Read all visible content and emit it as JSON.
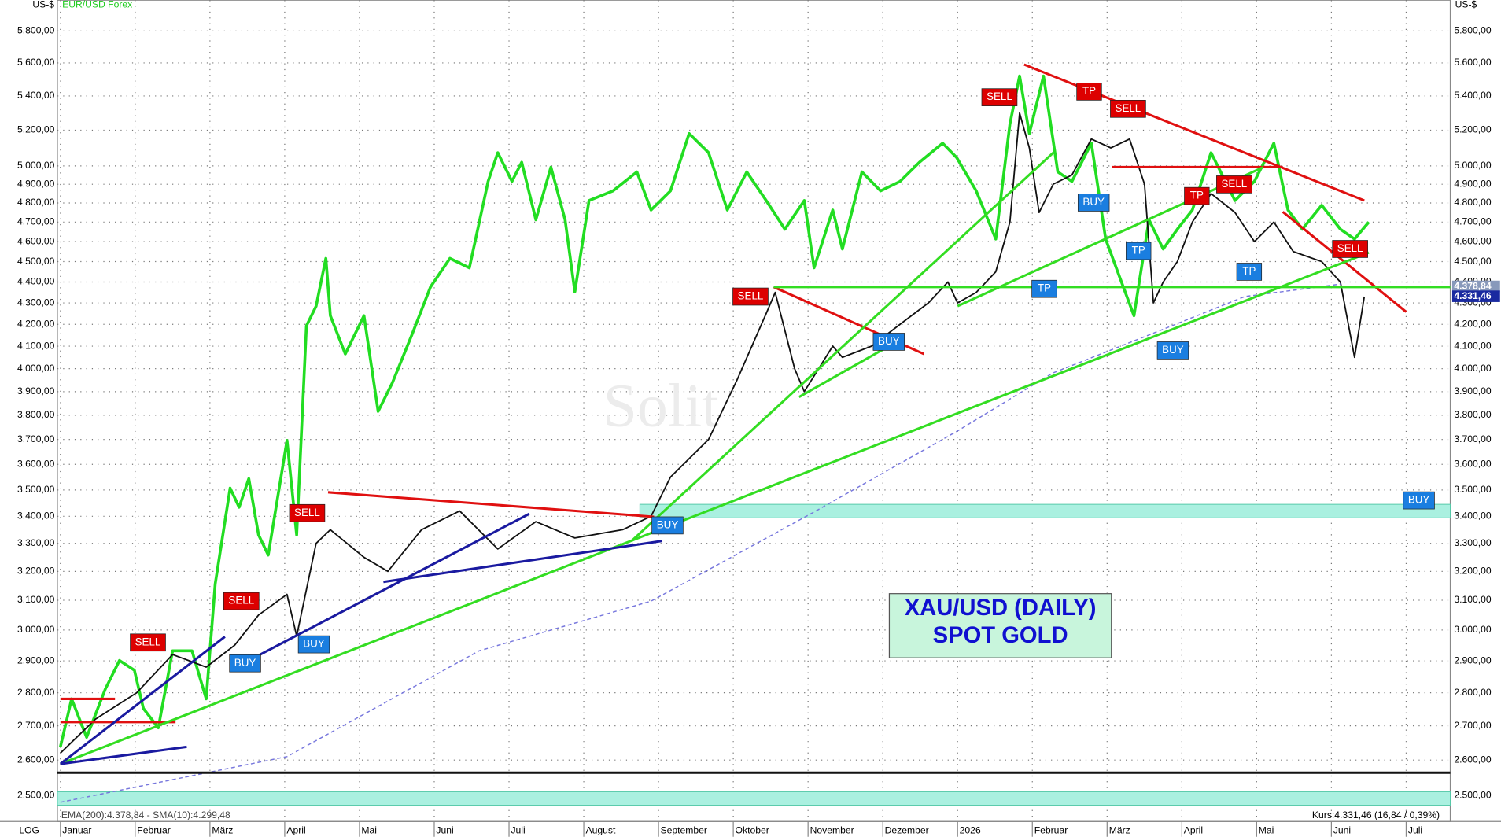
{
  "chart_data": {
    "type": "line",
    "y_unit": "US-$",
    "subtitle": "EUR/USD Forex",
    "scale_label": "LOG",
    "title_lines": [
      "XAU/USD (DAILY)",
      "SPOT GOLD"
    ],
    "watermark": "Solit",
    "indicator_legend": "EMA(200):4.378,84 - SMA(10):4.299,48",
    "price_info": "Kurs:4.331,46 (16,84 / 0,39%)",
    "log_scale": true,
    "grid": true,
    "xlim": [
      -0.04,
      18.59
    ],
    "xticks": [
      {
        "value": 0,
        "label": "Januar"
      },
      {
        "value": 1,
        "label": "Februar"
      },
      {
        "value": 2,
        "label": "März"
      },
      {
        "value": 3,
        "label": "April"
      },
      {
        "value": 4,
        "label": "Mai"
      },
      {
        "value": 5,
        "label": "Juni"
      },
      {
        "value": 6,
        "label": "Juli"
      },
      {
        "value": 7,
        "label": "August"
      },
      {
        "value": 8,
        "label": "September"
      },
      {
        "value": 9,
        "label": "Oktober"
      },
      {
        "value": 10,
        "label": "November"
      },
      {
        "value": 11,
        "label": "Dezember"
      },
      {
        "value": 12,
        "label": "2026"
      },
      {
        "value": 13,
        "label": "Februar"
      },
      {
        "value": 14,
        "label": "März"
      },
      {
        "value": 15,
        "label": "April"
      },
      {
        "value": 16,
        "label": "Mai"
      },
      {
        "value": 17,
        "label": "Juni"
      },
      {
        "value": 18,
        "label": "Juli"
      }
    ],
    "ylim": [
      2430,
      6000
    ],
    "yticks": [
      {
        "value": 2500,
        "label": "2.500,00"
      },
      {
        "value": 2600,
        "label": "2.600,00"
      },
      {
        "value": 2700,
        "label": "2.700,00"
      },
      {
        "value": 2800,
        "label": "2.800,00"
      },
      {
        "value": 2900,
        "label": "2.900,00"
      },
      {
        "value": 3000,
        "label": "3.000,00"
      },
      {
        "value": 3100,
        "label": "3.100,00"
      },
      {
        "value": 3200,
        "label": "3.200,00"
      },
      {
        "value": 3300,
        "label": "3.300,00"
      },
      {
        "value": 3400,
        "label": "3.400,00"
      },
      {
        "value": 3500,
        "label": "3.500,00"
      },
      {
        "value": 3600,
        "label": "3.600,00"
      },
      {
        "value": 3700,
        "label": "3.700,00"
      },
      {
        "value": 3800,
        "label": "3.800,00"
      },
      {
        "value": 3900,
        "label": "3.900,00"
      },
      {
        "value": 4000,
        "label": "4.000,00"
      },
      {
        "value": 4100,
        "label": "4.100,00"
      },
      {
        "value": 4200,
        "label": "4.200,00"
      },
      {
        "value": 4300,
        "label": "4.300,00"
      },
      {
        "value": 4400,
        "label": "4.400,00"
      },
      {
        "value": 4500,
        "label": "4.500,00"
      },
      {
        "value": 4600,
        "label": "4.600,00"
      },
      {
        "value": 4700,
        "label": "4.700,00"
      },
      {
        "value": 4800,
        "label": "4.800,00"
      },
      {
        "value": 4900,
        "label": "4.900,00"
      },
      {
        "value": 5000,
        "label": "5.000,00"
      },
      {
        "value": 5200,
        "label": "5.200,00"
      },
      {
        "value": 5400,
        "label": "5.400,00"
      },
      {
        "value": 5600,
        "label": "5.600,00"
      },
      {
        "value": 5800,
        "label": "5.800,00"
      }
    ],
    "series": [
      {
        "name": "EUR/USD Forex",
        "color": "#22dd22",
        "width": 3,
        "dash": false,
        "x": [
          0,
          0.15,
          0.35,
          0.6,
          0.79,
          0.99,
          1.11,
          1.31,
          1.5,
          1.76,
          1.95,
          2.07,
          2.27,
          2.39,
          2.52,
          2.65,
          2.78,
          3.03,
          3.16,
          3.29,
          3.42,
          3.55,
          3.61,
          3.81,
          4.06,
          4.25,
          4.44,
          4.7,
          4.95,
          5.21,
          5.47,
          5.72,
          5.85,
          6.04,
          6.17,
          6.36,
          6.56,
          6.75,
          6.88,
          7.07,
          7.39,
          7.71,
          7.9,
          8.16,
          8.41,
          8.67,
          8.92,
          9.18,
          9.44,
          9.69,
          9.95,
          10.08,
          10.33,
          10.46,
          10.72,
          10.97,
          11.23,
          11.49,
          11.8,
          11.99,
          12.25,
          12.51,
          12.7,
          12.83,
          12.96,
          13.15,
          13.34,
          13.53,
          13.79,
          13.98,
          14.17,
          14.36,
          14.56,
          14.75,
          14.94,
          15.14,
          15.39,
          15.71,
          15.97,
          16.23,
          16.42,
          16.61,
          16.87,
          17.12,
          17.31,
          17.5
        ],
        "values": [
          2638,
          2781,
          2666,
          2811,
          2901,
          2870,
          2752,
          2694,
          2932,
          2932,
          2781,
          3156,
          3507,
          3434,
          3544,
          3331,
          3258,
          3696,
          3331,
          4193,
          4285,
          4516,
          4240,
          4065,
          4240,
          3816,
          3938,
          4151,
          4376,
          4516,
          4469,
          4915,
          5073,
          4915,
          5020,
          4712,
          4993,
          4712,
          4353,
          4813,
          4864,
          4967,
          4763,
          4864,
          5181,
          5073,
          4763,
          4967,
          4813,
          4663,
          4813,
          4469,
          4763,
          4563,
          4967,
          4864,
          4915,
          5020,
          5126,
          5045,
          4864,
          4613,
          5236,
          5520,
          5181,
          5520,
          4967,
          4915,
          5126,
          4613,
          4422,
          4240,
          4712,
          4563,
          4663,
          4763,
          5073,
          4813,
          4915,
          5126,
          4763,
          4663,
          4788,
          4663,
          4613,
          4700
        ]
      },
      {
        "name": "XAU/USD",
        "color": "#111111",
        "width": 1.5,
        "dash": false,
        "x": [
          0,
          0.47,
          1.02,
          1.5,
          1.95,
          2.33,
          2.65,
          3.03,
          3.16,
          3.42,
          3.61,
          4.06,
          4.38,
          4.83,
          5.34,
          5.85,
          6.36,
          6.88,
          7.52,
          7.9,
          8.16,
          8.67,
          9.05,
          9.44,
          9.56,
          9.82,
          9.95,
          10.33,
          10.46,
          10.85,
          11.23,
          11.61,
          11.87,
          12.0,
          12.25,
          12.51,
          12.7,
          12.83,
          12.96,
          13.09,
          13.28,
          13.53,
          13.79,
          14.05,
          14.3,
          14.5,
          14.62,
          14.75,
          14.94,
          15.14,
          15.39,
          15.71,
          15.97,
          16.23,
          16.49,
          16.87,
          17.12,
          17.31,
          17.44
        ],
        "values": [
          2620,
          2720,
          2800,
          2920,
          2880,
          2950,
          3050,
          3120,
          2980,
          3300,
          3350,
          3250,
          3200,
          3350,
          3420,
          3280,
          3380,
          3320,
          3350,
          3400,
          3550,
          3700,
          3950,
          4250,
          4350,
          4000,
          3900,
          4100,
          4050,
          4100,
          4200,
          4300,
          4400,
          4300,
          4350,
          4450,
          4700,
          5300,
          5100,
          4750,
          4900,
          4950,
          5150,
          5100,
          5150,
          4900,
          4300,
          4400,
          4500,
          4700,
          4850,
          4750,
          4600,
          4700,
          4550,
          4500,
          4400,
          4050,
          4330
        ]
      },
      {
        "name": "EMA(200)",
        "color": "#7777dd",
        "width": 1.2,
        "dash": true,
        "x": [
          0,
          3.03,
          5.6,
          7.9,
          10.08,
          12.0,
          13.27,
          14.56,
          15.84,
          17.12
        ],
        "values": [
          2482,
          2610,
          2932,
          3097,
          3416,
          3735,
          3980,
          4151,
          4330,
          4390
        ]
      }
    ],
    "zones": [
      {
        "color": "#aaf0e0",
        "x": [
          7.75,
          18.59
        ],
        "y": [
          3394,
          3445
        ]
      },
      {
        "color": "#aaf0e0",
        "x": [
          -0.04,
          18.59
        ],
        "y": [
          2474,
          2511
        ]
      }
    ],
    "trendlines": [
      {
        "color": "#e01010",
        "x": [
          3.58,
          7.94
        ],
        "y": [
          3491,
          3398
        ]
      },
      {
        "color": "#e01010",
        "x": [
          9.54,
          11.55
        ],
        "y": [
          4376,
          4065
        ]
      },
      {
        "color": "#e01010",
        "x": [
          12.89,
          17.44
        ],
        "y": [
          5590,
          4813
        ]
      },
      {
        "color": "#e01010",
        "x": [
          16.35,
          18.0
        ],
        "y": [
          4753,
          4258
        ]
      },
      {
        "color": "#e01010",
        "x": [
          0,
          0.73
        ],
        "y": [
          2781,
          2781
        ]
      },
      {
        "color": "#e01010",
        "x": [
          0,
          1.54
        ],
        "y": [
          2711,
          2711
        ]
      },
      {
        "color": "#e01010",
        "x": [
          14.07,
          16.35
        ],
        "y": [
          4993,
          4993
        ]
      },
      {
        "color": "#33dd22",
        "x": [
          0,
          17.5
        ],
        "y": [
          2589,
          4545
        ]
      },
      {
        "color": "#33dd22",
        "x": [
          7.64,
          13.28
        ],
        "y": [
          3309,
          5073
        ]
      },
      {
        "color": "#33dd22",
        "x": [
          9.54,
          18.59
        ],
        "y": [
          4376,
          4376
        ]
      },
      {
        "color": "#33dd22",
        "x": [
          12.0,
          16.09
        ],
        "y": [
          4285,
          4993
        ]
      },
      {
        "color": "#33dd22",
        "x": [
          9.88,
          11.23
        ],
        "y": [
          3877,
          4129
        ]
      },
      {
        "color": "#1a1aa0",
        "x": [
          0,
          2.2
        ],
        "y": [
          2589,
          2978
        ]
      },
      {
        "color": "#1a1aa0",
        "x": [
          2.27,
          6.27
        ],
        "y": [
          2870,
          3409
        ]
      },
      {
        "color": "#1a1aa0",
        "x": [
          0,
          1.69
        ],
        "y": [
          2589,
          2638
        ]
      },
      {
        "color": "#1a1aa0",
        "x": [
          4.32,
          8.05
        ],
        "y": [
          3163,
          3309
        ]
      },
      {
        "color": "#111111",
        "x": [
          -0.04,
          18.59
        ],
        "y": [
          2564,
          2564
        ]
      }
    ],
    "annotations": [
      {
        "text": "SELL",
        "color": "#dd0000",
        "x": 1.17,
        "y": 2959
      },
      {
        "text": "BUY",
        "color": "#1a7ee0",
        "x": 2.47,
        "y": 2892
      },
      {
        "text": "SELL",
        "color": "#dd0000",
        "x": 2.42,
        "y": 3097
      },
      {
        "text": "BUY",
        "color": "#1a7ee0",
        "x": 3.39,
        "y": 2953
      },
      {
        "text": "SELL",
        "color": "#dd0000",
        "x": 3.3,
        "y": 3412
      },
      {
        "text": "BUY",
        "color": "#1a7ee0",
        "x": 8.12,
        "y": 3366
      },
      {
        "text": "SELL",
        "color": "#dd0000",
        "x": 9.23,
        "y": 4330
      },
      {
        "text": "BUY",
        "color": "#1a7ee0",
        "x": 11.08,
        "y": 4120
      },
      {
        "text": "TP",
        "color": "#1a7ee0",
        "x": 13.16,
        "y": 4367
      },
      {
        "text": "SELL",
        "color": "#dd0000",
        "x": 12.56,
        "y": 5392
      },
      {
        "text": "TP",
        "color": "#dd0000",
        "x": 13.76,
        "y": 5426
      },
      {
        "text": "SELL",
        "color": "#dd0000",
        "x": 14.28,
        "y": 5324
      },
      {
        "text": "BUY",
        "color": "#1a7ee0",
        "x": 13.82,
        "y": 4802
      },
      {
        "text": "TP",
        "color": "#1a7ee0",
        "x": 14.42,
        "y": 4553
      },
      {
        "text": "TP",
        "color": "#dd0000",
        "x": 15.2,
        "y": 4837
      },
      {
        "text": "SELL",
        "color": "#dd0000",
        "x": 15.7,
        "y": 4899
      },
      {
        "text": "TP",
        "color": "#1a7ee0",
        "x": 15.9,
        "y": 4450
      },
      {
        "text": "BUY",
        "color": "#1a7ee0",
        "x": 14.88,
        "y": 4081
      },
      {
        "text": "SELL",
        "color": "#dd0000",
        "x": 17.25,
        "y": 4563
      },
      {
        "text": "BUY",
        "color": "#1a7ee0",
        "x": 18.17,
        "y": 3460
      }
    ],
    "price_tags": [
      {
        "value": 4378.84,
        "label": "4.378,84",
        "color": "#8899bb"
      },
      {
        "value": 4331.46,
        "label": "4.331,46",
        "color": "#1a2aa0"
      }
    ]
  }
}
